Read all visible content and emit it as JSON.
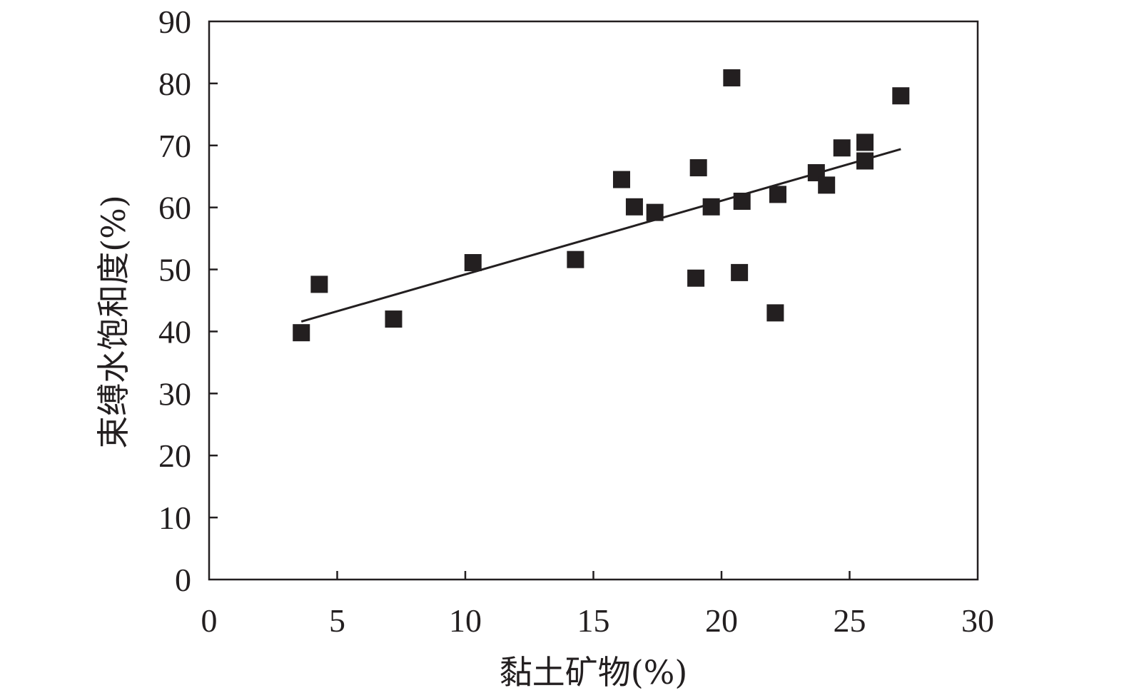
{
  "chart_data": {
    "type": "scatter",
    "title": "",
    "xlabel": "黏土矿物(%)",
    "ylabel": "束缚水饱和度(%)",
    "xlim": [
      0,
      30
    ],
    "ylim": [
      0,
      90
    ],
    "x_ticks": [
      "0",
      "5",
      "10",
      "15",
      "20",
      "25",
      "30"
    ],
    "y_ticks": [
      "0",
      "10",
      "20",
      "30",
      "40",
      "50",
      "60",
      "70",
      "80",
      "90"
    ],
    "grid": false,
    "legend": "none",
    "marker": "square",
    "marker_color": "#231f20",
    "line_color": "#231f20",
    "points": [
      {
        "x": 3.6,
        "y": 39.8
      },
      {
        "x": 4.3,
        "y": 47.6
      },
      {
        "x": 7.2,
        "y": 42.0
      },
      {
        "x": 10.3,
        "y": 51.1
      },
      {
        "x": 14.3,
        "y": 51.6
      },
      {
        "x": 16.1,
        "y": 64.5
      },
      {
        "x": 16.6,
        "y": 60.1
      },
      {
        "x": 17.4,
        "y": 59.2
      },
      {
        "x": 19.0,
        "y": 48.6
      },
      {
        "x": 19.1,
        "y": 66.4
      },
      {
        "x": 19.6,
        "y": 60.1
      },
      {
        "x": 20.4,
        "y": 80.9
      },
      {
        "x": 20.8,
        "y": 61.0
      },
      {
        "x": 20.7,
        "y": 49.5
      },
      {
        "x": 22.2,
        "y": 62.1
      },
      {
        "x": 22.1,
        "y": 43.0
      },
      {
        "x": 23.7,
        "y": 65.6
      },
      {
        "x": 24.1,
        "y": 63.6
      },
      {
        "x": 24.7,
        "y": 69.6
      },
      {
        "x": 25.6,
        "y": 70.5
      },
      {
        "x": 25.6,
        "y": 67.5
      },
      {
        "x": 27.0,
        "y": 78.0
      }
    ],
    "trendline": {
      "x": [
        3.6,
        27.0
      ],
      "y": [
        41.6,
        69.4
      ]
    }
  }
}
